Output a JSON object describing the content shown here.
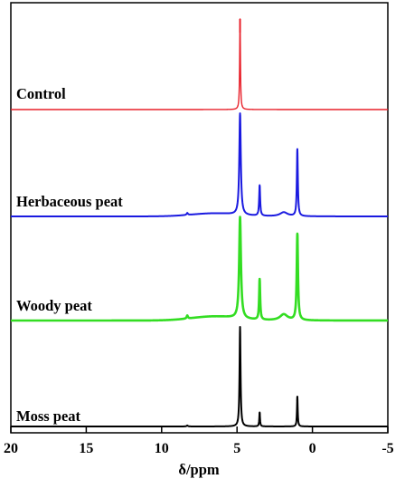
{
  "chart_data": {
    "type": "line",
    "xlabel": "δ/ppm",
    "ylabel": "",
    "xlim": [
      20,
      -5
    ],
    "xticks": [
      20,
      15,
      10,
      5,
      0,
      -5
    ],
    "xtick_labels": [
      "20",
      "15",
      "10",
      "5",
      "0",
      "-5"
    ],
    "grid": false,
    "legend": "none",
    "series": [
      {
        "name": "Control",
        "color": "#e8202a",
        "peaks": [
          {
            "x": 4.8,
            "height": 1.0,
            "width": 0.03
          }
        ],
        "hump": {
          "x": 6.5,
          "height": 0.0,
          "width": 1.0
        }
      },
      {
        "name": "Herbaceous peat",
        "color": "#1a1ae0",
        "peaks": [
          {
            "x": 4.8,
            "height": 1.0,
            "width": 0.06
          },
          {
            "x": 3.5,
            "height": 0.3,
            "width": 0.04
          },
          {
            "x": 1.0,
            "height": 0.66,
            "width": 0.04
          },
          {
            "x": 8.3,
            "height": 0.02,
            "width": 0.05
          },
          {
            "x": 1.9,
            "height": 0.04,
            "width": 0.3
          }
        ],
        "hump": {
          "x": 6.5,
          "height": 0.03,
          "width": 1.5
        }
      },
      {
        "name": "Woody peat",
        "color": "#33dd22",
        "peaks": [
          {
            "x": 4.8,
            "height": 1.0,
            "width": 0.07
          },
          {
            "x": 3.5,
            "height": 0.4,
            "width": 0.04
          },
          {
            "x": 1.0,
            "height": 0.85,
            "width": 0.05
          },
          {
            "x": 8.3,
            "height": 0.03,
            "width": 0.05
          },
          {
            "x": 1.9,
            "height": 0.06,
            "width": 0.3
          }
        ],
        "hump": {
          "x": 6.5,
          "height": 0.04,
          "width": 1.5
        }
      },
      {
        "name": "Moss peat",
        "color": "#000000",
        "peaks": [
          {
            "x": 4.8,
            "height": 1.0,
            "width": 0.04
          },
          {
            "x": 3.5,
            "height": 0.14,
            "width": 0.03
          },
          {
            "x": 1.0,
            "height": 0.3,
            "width": 0.03
          },
          {
            "x": 8.3,
            "height": 0.01,
            "width": 0.05
          }
        ],
        "hump": {
          "x": 6.5,
          "height": 0.0,
          "width": 1.5
        }
      }
    ]
  }
}
